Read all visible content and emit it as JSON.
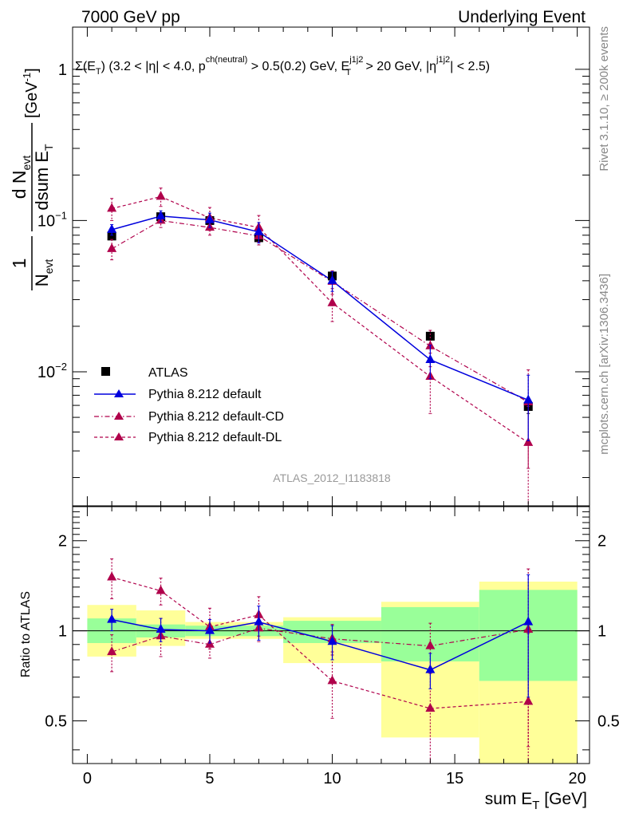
{
  "header": {
    "left": "7000 GeV pp",
    "right": "Underlying Event"
  },
  "side_labels": {
    "top": "Rivet 3.1.10, ≥ 200k events",
    "bottom": "mcplots.cern.ch [arXiv:1306.3436]"
  },
  "analysis_id": "ATLAS_2012_I1183818",
  "selection_text": {
    "sigma": "Σ(E",
    "sigma_sub": "T",
    "p1": ") (3.2 < |η| < 4.0, p",
    "ch_sup": "ch(neutral)",
    "p2": " > 0.5(0.2) GeV, E",
    "et_sup": "j1j2",
    "et_sub": "T",
    "p3": " > 20 GeV, |η",
    "eta_sup": "j1j2",
    "p4": "| < 2.5)"
  },
  "y_label": {
    "one": "1",
    "n_evt": "N",
    "n_evt_sub": "evt",
    "d_n": "d N",
    "d_n_sub": "evt",
    "dsum": "dsum E",
    "dsum_sub": "T",
    "unit": "[GeV",
    "unit_sup": "-1",
    "unit_close": "]"
  },
  "x_label": {
    "main": "sum E",
    "sub": "T",
    "unit": " [GeV]"
  },
  "ratio_label": "Ratio to ATLAS",
  "colors": {
    "data": "#000000",
    "default": "#0000dd",
    "cd": "#b0004b",
    "dl": "#b0004b",
    "band_inner": "#99ff99",
    "band_outer": "#ffff99"
  },
  "chart_data": [
    {
      "type": "scatter",
      "panel": "main",
      "xlim": [
        -0.6,
        20.5
      ],
      "ylim_log": [
        0.0013,
        1.9
      ],
      "yscale": "log",
      "y_ticks": [
        {
          "value": 1,
          "label": "1"
        },
        {
          "value": 0.1,
          "label": "10",
          "sup": "−1"
        },
        {
          "value": 0.01,
          "label": "10",
          "sup": "−2"
        }
      ],
      "bins": [
        0,
        2,
        4,
        6,
        8,
        12,
        16,
        20
      ],
      "x": [
        1,
        3,
        5,
        7,
        10,
        14,
        18
      ],
      "series": [
        {
          "name": "ATLAS",
          "marker": "square",
          "values": [
            0.079,
            0.106,
            0.1,
            0.077,
            0.043,
            0.0172,
            0.0059
          ],
          "err": [
            0.004,
            0.004,
            0.004,
            0.003,
            0.002,
            0.001,
            0.0006
          ]
        },
        {
          "name": "Pythia 8.212 default",
          "marker": "triangle",
          "line": "solid",
          "values": [
            0.087,
            0.107,
            0.101,
            0.084,
            0.04,
            0.012,
            0.0065
          ],
          "err": [
            0.007,
            0.009,
            0.011,
            0.013,
            0.006,
            0.003,
            0.003
          ]
        },
        {
          "name": "Pythia 8.212 default-CD",
          "marker": "triangle",
          "line": "dashdot",
          "values": [
            0.065,
            0.1,
            0.09,
            0.079,
            0.0395,
            0.0148,
            0.0063
          ],
          "err": [
            0.01,
            0.01,
            0.01,
            0.01,
            0.007,
            0.004,
            0.004
          ]
        },
        {
          "name": "Pythia 8.212 default-DL",
          "marker": "triangle",
          "line": "dashed",
          "values": [
            0.12,
            0.144,
            0.104,
            0.09,
            0.0285,
            0.0093,
            0.0034
          ],
          "err": [
            0.02,
            0.02,
            0.018,
            0.018,
            0.007,
            0.004,
            0.0025
          ]
        }
      ]
    },
    {
      "type": "scatter",
      "panel": "ratio",
      "xlim": [
        -0.6,
        20.5
      ],
      "ylim_log": [
        0.36,
        2.6
      ],
      "yscale": "log",
      "y_ticks": [
        {
          "value": 0.5,
          "label": "0.5"
        },
        {
          "value": 1,
          "label": "1"
        },
        {
          "value": 2,
          "label": "2"
        }
      ],
      "x_ticks": [
        0,
        5,
        10,
        15,
        20
      ],
      "bins": [
        0,
        2,
        4,
        6,
        8,
        12,
        16,
        20
      ],
      "band_inner": [
        [
          0.91,
          1.1
        ],
        [
          0.95,
          1.05
        ],
        [
          0.96,
          1.04
        ],
        [
          0.96,
          1.04
        ],
        [
          0.91,
          1.08
        ],
        [
          0.79,
          1.2
        ],
        [
          0.68,
          1.37
        ]
      ],
      "band_outer": [
        [
          0.82,
          1.22
        ],
        [
          0.89,
          1.17
        ],
        [
          0.94,
          1.07
        ],
        [
          0.94,
          1.07
        ],
        [
          0.78,
          1.11
        ],
        [
          0.44,
          1.25
        ],
        [
          0.31,
          1.46
        ]
      ],
      "x": [
        1,
        3,
        5,
        7,
        10,
        14,
        18
      ],
      "series": [
        {
          "name": "Pythia 8.212 default",
          "values": [
            1.09,
            1.01,
            1.0,
            1.07,
            0.92,
            0.74,
            1.07
          ],
          "err": [
            0.09,
            0.09,
            0.09,
            0.14,
            0.12,
            0.1,
            0.47
          ]
        },
        {
          "name": "Pythia 8.212 default-CD",
          "values": [
            0.85,
            0.96,
            0.9,
            1.02,
            0.94,
            0.89,
            1.01
          ],
          "err": [
            0.12,
            0.14,
            0.09,
            0.1,
            0.11,
            0.17,
            0.6
          ]
        },
        {
          "name": "Pythia 8.212 default-DL",
          "values": [
            1.51,
            1.36,
            1.03,
            1.13,
            0.68,
            0.55,
            0.58
          ],
          "err": [
            0.23,
            0.14,
            0.16,
            0.17,
            0.17,
            0.2,
            0.4
          ]
        }
      ]
    }
  ]
}
